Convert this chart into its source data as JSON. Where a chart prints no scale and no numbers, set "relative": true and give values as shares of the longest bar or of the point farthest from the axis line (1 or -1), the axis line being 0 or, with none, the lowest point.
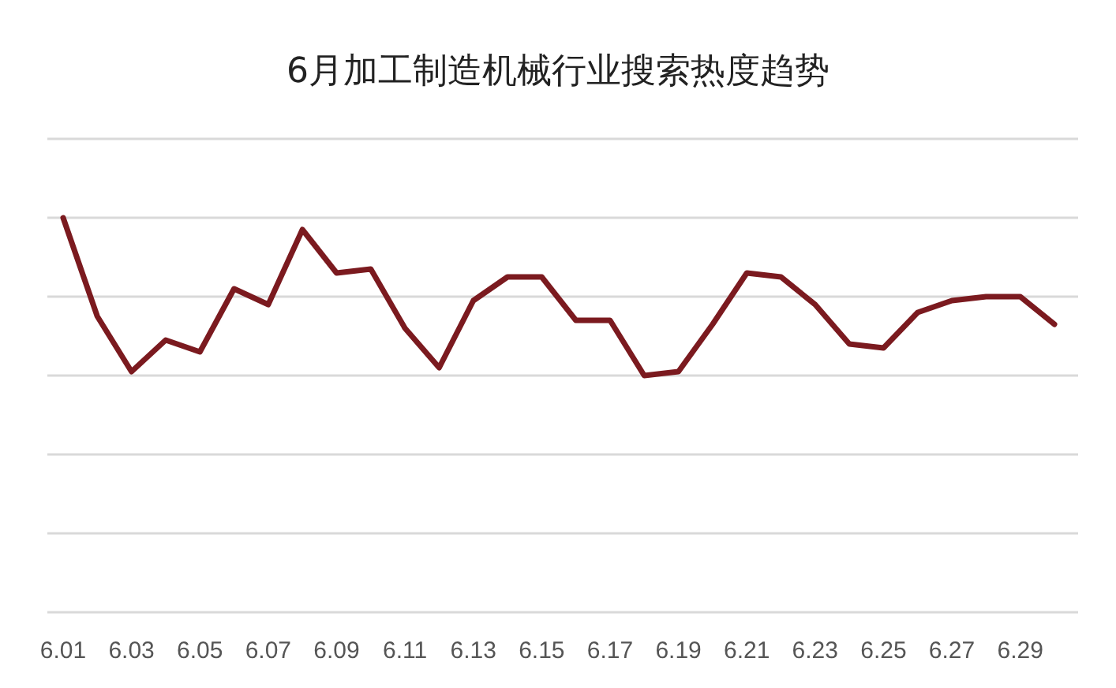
{
  "chart_data": {
    "type": "line",
    "title": "6月加工制造机械行业搜索热度趋势",
    "relative": true,
    "grid": "y",
    "categories": [
      "6.01",
      null,
      "6.03",
      null,
      "6.05",
      null,
      "6.07",
      null,
      "6.09",
      null,
      "6.11",
      null,
      "6.13",
      null,
      "6.15",
      null,
      "6.17",
      null,
      "6.19",
      null,
      "6.21",
      null,
      "6.23",
      null,
      "6.25",
      null,
      "6.27",
      null,
      "6.29",
      null
    ],
    "series": [
      {
        "color": "#7b1a1f",
        "values": [
          1.0,
          0.75,
          0.61,
          0.69,
          0.66,
          0.82,
          0.78,
          0.97,
          0.86,
          0.87,
          0.72,
          0.62,
          0.79,
          0.85,
          0.85,
          0.74,
          0.74,
          0.6,
          0.61,
          0.73,
          0.86,
          0.85,
          0.78,
          0.68,
          0.67,
          0.76,
          0.79,
          0.8,
          0.8,
          0.73
        ]
      }
    ]
  }
}
